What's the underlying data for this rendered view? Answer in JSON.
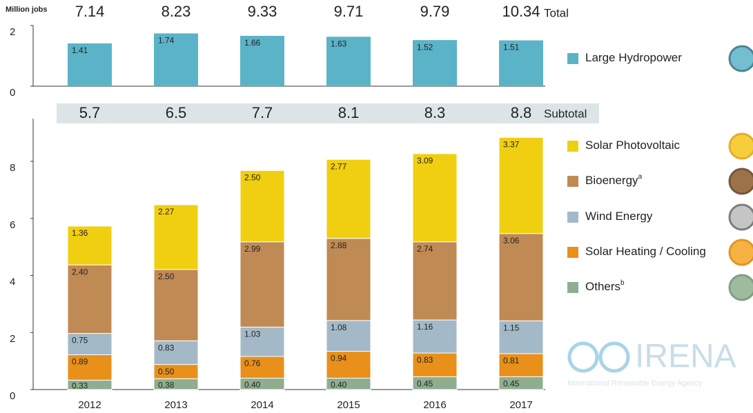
{
  "chart_data": [
    {
      "type": "bar",
      "ylabel": "Million jobs",
      "categories": [
        "2012",
        "2013",
        "2014",
        "2015",
        "2016",
        "2017"
      ],
      "series": [
        {
          "name": "Large Hydropower",
          "color": "#5bb3c8",
          "values": [
            1.41,
            1.74,
            1.66,
            1.63,
            1.52,
            1.51
          ]
        }
      ],
      "totals": [
        7.14,
        8.23,
        9.33,
        9.71,
        9.79,
        10.34
      ],
      "totals_label": "Total",
      "ylim": [
        0,
        2
      ],
      "yticks": [
        0,
        2
      ]
    },
    {
      "type": "stacked_bar",
      "categories": [
        "2012",
        "2013",
        "2014",
        "2015",
        "2016",
        "2017"
      ],
      "series": [
        {
          "name": "Others",
          "name_note": "b",
          "color": "#8fae8f",
          "values": [
            0.33,
            0.38,
            0.4,
            0.4,
            0.45,
            0.45
          ],
          "value_labels": [
            "0.33",
            "0.38",
            "0.40",
            "0.40",
            "0.45",
            "0.45"
          ]
        },
        {
          "name": "Solar Heating / Cooling",
          "color": "#e8901a",
          "values": [
            0.89,
            0.5,
            0.76,
            0.94,
            0.83,
            0.81
          ],
          "value_labels": [
            "0.89",
            "0.50",
            "0.76",
            "0.94",
            "0.83",
            "0.81"
          ]
        },
        {
          "name": "Wind Energy",
          "color": "#a3b9c8",
          "values": [
            0.75,
            0.83,
            1.03,
            1.08,
            1.16,
            1.15
          ],
          "value_labels": [
            "0.75",
            "0.83",
            "1.03",
            "1.08",
            "1.16",
            "1.15"
          ]
        },
        {
          "name": "Bioenergy",
          "name_note": "a",
          "color": "#c08a55",
          "values": [
            2.4,
            2.5,
            2.99,
            2.88,
            2.74,
            3.06
          ],
          "value_labels": [
            "2.40",
            "2.50",
            "2.99",
            "2.88",
            "2.74",
            "3.06"
          ]
        },
        {
          "name": "Solar Photovoltaic",
          "color": "#f0cf10",
          "values": [
            1.36,
            2.27,
            2.5,
            2.77,
            3.09,
            3.37
          ],
          "value_labels": [
            "1.36",
            "2.27",
            "2.50",
            "2.77",
            "3.09",
            "3.37"
          ]
        }
      ],
      "subtotals": [
        5.7,
        6.5,
        7.7,
        8.1,
        8.3,
        8.8
      ],
      "subtotals_label": "Subtotal",
      "ylim": [
        0,
        9.5
      ],
      "yticks": [
        0,
        2,
        4,
        6,
        8
      ]
    }
  ],
  "logo": {
    "name": "IRENA",
    "subtitle": "International Renewable Energy Agency"
  }
}
